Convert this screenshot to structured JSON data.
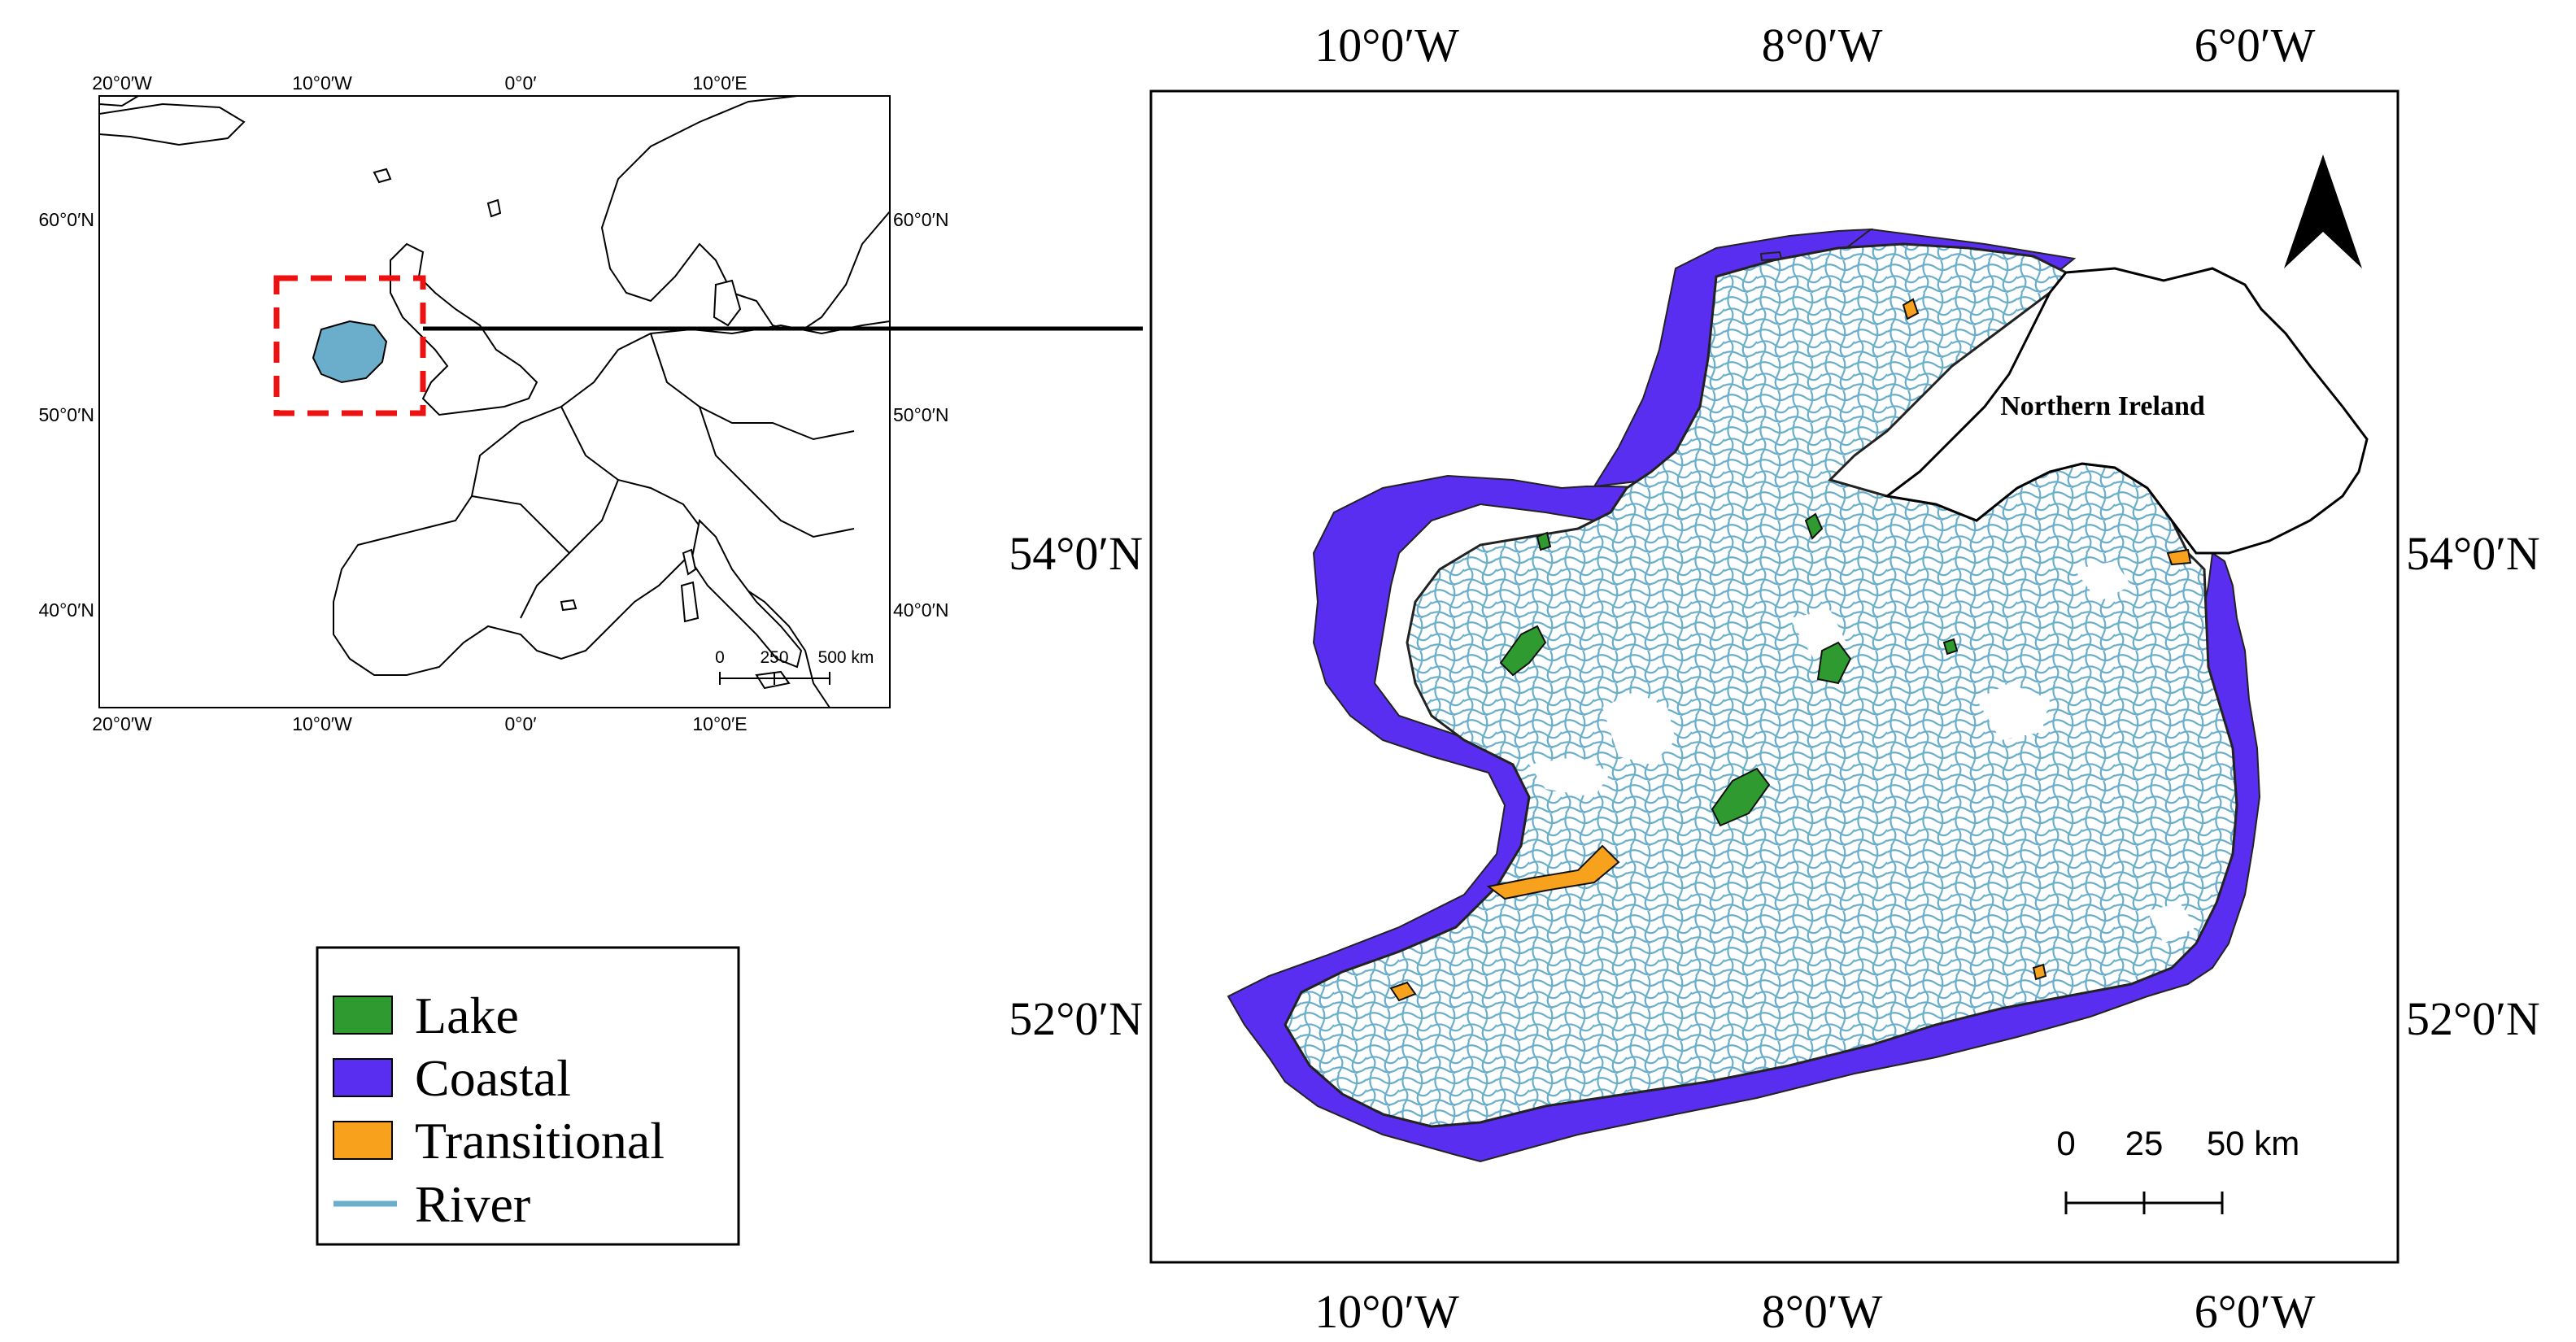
{
  "colors": {
    "lake": "#2f9a2f",
    "coastal": "#5a2ef0",
    "transitional": "#f7a11c",
    "river": "#6aaecb",
    "highlight_box": "#ee1111",
    "land_outline": "#000000"
  },
  "inset_map": {
    "lon_ticks_top": [
      "20°0′W",
      "10°0′W",
      "0°0′",
      "10°0′E"
    ],
    "lon_ticks_bottom": [
      "20°0′W",
      "10°0′W",
      "0°0′",
      "10°0′E"
    ],
    "lat_ticks_left": [
      "60°0′N",
      "50°0′N",
      "40°0′N"
    ],
    "lat_ticks_right": [
      "60°0′N",
      "50°0′N",
      "40°0′N"
    ],
    "scale_bar": {
      "labels": [
        "0",
        "250",
        "500 km"
      ]
    }
  },
  "main_map": {
    "lon_ticks_top": [
      "10°0′W",
      "8°0′W",
      "6°0′W"
    ],
    "lon_ticks_bottom": [
      "10°0′W",
      "8°0′W",
      "6°0′W"
    ],
    "lat_ticks_left": [
      "54°0′N",
      "52°0′N"
    ],
    "lat_ticks_right": [
      "54°0′N",
      "52°0′N"
    ],
    "region_label": "Northern Ireland",
    "north_arrow_icon": "north-arrow-icon",
    "scale_bar": {
      "labels": [
        "0",
        "25",
        "50 km"
      ]
    }
  },
  "legend": {
    "items": [
      {
        "label": "Lake",
        "kind": "swatch",
        "color": "#2f9a2f"
      },
      {
        "label": "Coastal",
        "kind": "swatch",
        "color": "#5a2ef0"
      },
      {
        "label": "Transitional",
        "kind": "swatch",
        "color": "#f7a11c"
      },
      {
        "label": "River",
        "kind": "line",
        "color": "#6aaecb"
      }
    ]
  }
}
